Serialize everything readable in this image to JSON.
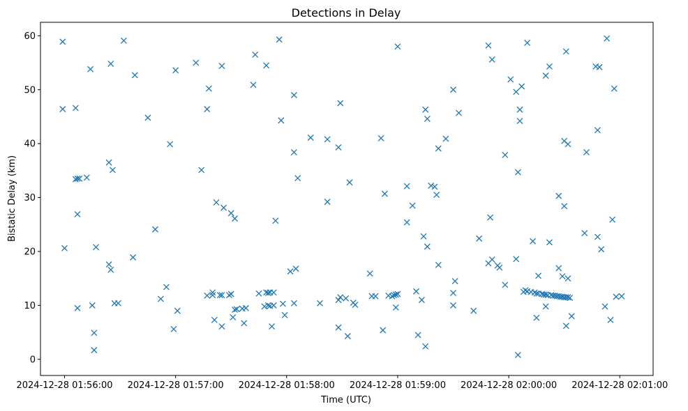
{
  "chart_data": {
    "type": "scatter",
    "title": "Detections in Delay",
    "xlabel": "Time (UTC)",
    "ylabel": "Bistatic Delay (km)",
    "marker": "x",
    "color": "#1f77b4",
    "x_unit": "seconds since 2024-12-28 01:56:00",
    "xlim": [
      -13,
      318
    ],
    "ylim": [
      -3,
      62.5
    ],
    "x_ticks": [
      {
        "value": 0,
        "label": "2024-12-28 01:56:00"
      },
      {
        "value": 60,
        "label": "2024-12-28 01:57:00"
      },
      {
        "value": 120,
        "label": "2024-12-28 01:58:00"
      },
      {
        "value": 180,
        "label": "2024-12-28 01:59:00"
      },
      {
        "value": 240,
        "label": "2024-12-28 02:00:00"
      },
      {
        "value": 300,
        "label": "2024-12-28 02:01:00"
      }
    ],
    "y_ticks": [
      {
        "value": 0,
        "label": "0"
      },
      {
        "value": 10,
        "label": "10"
      },
      {
        "value": 20,
        "label": "20"
      },
      {
        "value": 30,
        "label": "30"
      },
      {
        "value": 40,
        "label": "40"
      },
      {
        "value": 50,
        "label": "50"
      },
      {
        "value": 60,
        "label": "60"
      }
    ],
    "points": [
      [
        -1,
        58.9
      ],
      [
        -1,
        46.4
      ],
      [
        0,
        20.6
      ],
      [
        6,
        46.6
      ],
      [
        6,
        33.4
      ],
      [
        7,
        33.5
      ],
      [
        8,
        33.5
      ],
      [
        7,
        26.9
      ],
      [
        7,
        9.5
      ],
      [
        12,
        33.7
      ],
      [
        14,
        53.8
      ],
      [
        15,
        10.0
      ],
      [
        16,
        4.9
      ],
      [
        16,
        1.7
      ],
      [
        17,
        20.8
      ],
      [
        24,
        36.5
      ],
      [
        24,
        17.6
      ],
      [
        25,
        16.6
      ],
      [
        25,
        54.8
      ],
      [
        26,
        35.1
      ],
      [
        27,
        10.4
      ],
      [
        29,
        10.4
      ],
      [
        32,
        59.1
      ],
      [
        37,
        18.9
      ],
      [
        38,
        52.7
      ],
      [
        45,
        44.8
      ],
      [
        49,
        24.1
      ],
      [
        52,
        11.2
      ],
      [
        55,
        13.4
      ],
      [
        57,
        39.9
      ],
      [
        59,
        5.6
      ],
      [
        60,
        53.6
      ],
      [
        61,
        9.0
      ],
      [
        71,
        55.0
      ],
      [
        74,
        35.1
      ],
      [
        77,
        46.4
      ],
      [
        78,
        50.2
      ],
      [
        77,
        11.8
      ],
      [
        80,
        12.4
      ],
      [
        80,
        11.9
      ],
      [
        81,
        7.3
      ],
      [
        82,
        29.1
      ],
      [
        84,
        11.9
      ],
      [
        85,
        11.9
      ],
      [
        85,
        54.4
      ],
      [
        85,
        6.1
      ],
      [
        86,
        28.1
      ],
      [
        89,
        11.9
      ],
      [
        90,
        12.1
      ],
      [
        90,
        27.1
      ],
      [
        91,
        7.8
      ],
      [
        92,
        9.2
      ],
      [
        92,
        26.1
      ],
      [
        93,
        9.3
      ],
      [
        96,
        9.4
      ],
      [
        97,
        6.7
      ],
      [
        98,
        9.5
      ],
      [
        102,
        50.9
      ],
      [
        103,
        56.5
      ],
      [
        105,
        12.2
      ],
      [
        108,
        9.8
      ],
      [
        109,
        12.4
      ],
      [
        109,
        54.5
      ],
      [
        110,
        10.0
      ],
      [
        110,
        12.3
      ],
      [
        111,
        12.4
      ],
      [
        111,
        9.9
      ],
      [
        112,
        6.1
      ],
      [
        113,
        10.0
      ],
      [
        113,
        12.4
      ],
      [
        114,
        25.7
      ],
      [
        116,
        59.3
      ],
      [
        117,
        44.3
      ],
      [
        118,
        10.3
      ],
      [
        119,
        8.2
      ],
      [
        122,
        16.3
      ],
      [
        124,
        10.4
      ],
      [
        124,
        38.4
      ],
      [
        124,
        49.0
      ],
      [
        125,
        16.8
      ],
      [
        126,
        33.6
      ],
      [
        133,
        41.1
      ],
      [
        138,
        10.4
      ],
      [
        142,
        29.2
      ],
      [
        142,
        40.8
      ],
      [
        148,
        5.9
      ],
      [
        148,
        11.0
      ],
      [
        148,
        39.3
      ],
      [
        149,
        11.5
      ],
      [
        149,
        47.5
      ],
      [
        152,
        11.3
      ],
      [
        153,
        4.3
      ],
      [
        154,
        32.8
      ],
      [
        156,
        10.5
      ],
      [
        157,
        10.1
      ],
      [
        165,
        15.9
      ],
      [
        166,
        11.7
      ],
      [
        168,
        11.7
      ],
      [
        171,
        41.0
      ],
      [
        172,
        5.4
      ],
      [
        173,
        30.7
      ],
      [
        175,
        11.8
      ],
      [
        177,
        11.7
      ],
      [
        178,
        11.9
      ],
      [
        179,
        9.6
      ],
      [
        179,
        12.0
      ],
      [
        180,
        12.1
      ],
      [
        180,
        58.0
      ],
      [
        185,
        25.4
      ],
      [
        185,
        32.1
      ],
      [
        188,
        28.5
      ],
      [
        190,
        12.6
      ],
      [
        191,
        4.5
      ],
      [
        193,
        11.0
      ],
      [
        194,
        22.8
      ],
      [
        195,
        46.3
      ],
      [
        195,
        2.4
      ],
      [
        196,
        44.6
      ],
      [
        196,
        20.9
      ],
      [
        198,
        32.2
      ],
      [
        200,
        32.0
      ],
      [
        201,
        30.5
      ],
      [
        202,
        39.1
      ],
      [
        202,
        17.5
      ],
      [
        206,
        40.9
      ],
      [
        210,
        50.0
      ],
      [
        210,
        10.0
      ],
      [
        210,
        12.3
      ],
      [
        211,
        14.5
      ],
      [
        213,
        45.7
      ],
      [
        221,
        9.0
      ],
      [
        224,
        22.4
      ],
      [
        229,
        17.8
      ],
      [
        229,
        58.2
      ],
      [
        230,
        26.3
      ],
      [
        231,
        55.6
      ],
      [
        231,
        18.5
      ],
      [
        234,
        17.4
      ],
      [
        235,
        17.0
      ],
      [
        238,
        37.9
      ],
      [
        238,
        13.8
      ],
      [
        241,
        51.9
      ],
      [
        244,
        18.6
      ],
      [
        244,
        49.6
      ],
      [
        245,
        34.7
      ],
      [
        245,
        0.8
      ],
      [
        246,
        46.3
      ],
      [
        246,
        44.2
      ],
      [
        247,
        50.6
      ],
      [
        248,
        12.5
      ],
      [
        249,
        12.8
      ],
      [
        250,
        12.6
      ],
      [
        250,
        58.7
      ],
      [
        252,
        12.5
      ],
      [
        253,
        21.9
      ],
      [
        254,
        12.4
      ],
      [
        255,
        7.7
      ],
      [
        255,
        12.2
      ],
      [
        256,
        15.5
      ],
      [
        256,
        12.2
      ],
      [
        258,
        12.1
      ],
      [
        259,
        12.0
      ],
      [
        260,
        9.8
      ],
      [
        260,
        12.0
      ],
      [
        260,
        52.6
      ],
      [
        261,
        11.9
      ],
      [
        262,
        21.7
      ],
      [
        262,
        54.3
      ],
      [
        263,
        11.9
      ],
      [
        264,
        11.8
      ],
      [
        265,
        11.8
      ],
      [
        266,
        11.7
      ],
      [
        267,
        11.7
      ],
      [
        267,
        30.3
      ],
      [
        267,
        16.9
      ],
      [
        268,
        11.6
      ],
      [
        269,
        11.6
      ],
      [
        269,
        15.4
      ],
      [
        270,
        28.4
      ],
      [
        270,
        40.5
      ],
      [
        270,
        11.5
      ],
      [
        271,
        11.5
      ],
      [
        271,
        57.1
      ],
      [
        271,
        6.2
      ],
      [
        272,
        39.9
      ],
      [
        272,
        15.0
      ],
      [
        272,
        11.5
      ],
      [
        273,
        11.4
      ],
      [
        274,
        8.0
      ],
      [
        281,
        23.4
      ],
      [
        282,
        38.4
      ],
      [
        287,
        54.3
      ],
      [
        288,
        42.5
      ],
      [
        288,
        22.7
      ],
      [
        289,
        54.2
      ],
      [
        290,
        20.4
      ],
      [
        292,
        9.8
      ],
      [
        293,
        59.5
      ],
      [
        295,
        7.3
      ],
      [
        296,
        25.9
      ],
      [
        297,
        50.2
      ],
      [
        298,
        11.6
      ],
      [
        301,
        11.7
      ]
    ]
  }
}
